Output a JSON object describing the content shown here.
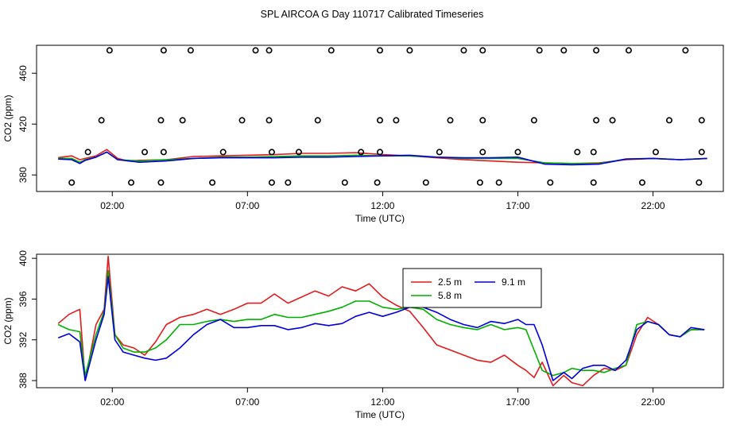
{
  "title": "SPL AIRCOA G  Day 110717  Calibrated Timeseries",
  "colors": {
    "s25": "#e31a1c",
    "s58": "#00b000",
    "s91": "#0000dd",
    "axis": "#000000"
  },
  "chart_data": [
    {
      "type": "line",
      "name": "top-panel",
      "xlabel": "Time (UTC)",
      "ylabel": "CO2 (ppm)",
      "xlim": [
        -0.8,
        24.6
      ],
      "ylim": [
        367,
        482
      ],
      "xticks": [
        2,
        7,
        12,
        17,
        22
      ],
      "xtick_labels": [
        "02:00",
        "07:00",
        "12:00",
        "17:00",
        "22:00"
      ],
      "yticks": [
        380,
        420,
        460
      ],
      "ytick_labels": [
        "380",
        "420",
        "460"
      ],
      "cal_points": {
        "time_h": [
          0.5,
          1.1,
          1.6,
          1.9,
          2.7,
          3.2,
          3.8,
          3.8,
          3.9,
          3.9,
          4.9,
          4.6,
          5.7,
          6.1,
          6.8,
          7.3,
          7.8,
          7.8,
          7.9,
          7.9,
          8.5,
          8.9,
          9.6,
          10.1,
          10.6,
          11.2,
          11.8,
          11.9,
          11.9,
          11.9,
          12.5,
          13.0,
          13.6,
          14.1,
          14.5,
          15.0,
          15.6,
          15.7,
          15.7,
          15.7,
          16.3,
          17.0,
          17.6,
          17.8,
          18.2,
          18.7,
          19.2,
          19.8,
          19.8,
          19.9,
          19.9,
          20.5,
          21.1,
          21.6,
          22.1,
          22.6,
          23.2,
          23.7,
          23.8,
          23.8
        ],
        "co2": [
          374,
          398,
          423,
          478,
          374,
          398,
          374,
          423,
          398,
          478,
          478,
          423,
          374,
          398,
          423,
          478,
          423,
          478,
          374,
          398,
          374,
          398,
          423,
          478,
          374,
          398,
          374,
          423,
          478,
          398,
          423,
          478,
          374,
          398,
          423,
          478,
          374,
          398,
          423,
          478,
          374,
          398,
          423,
          478,
          374,
          478,
          398,
          374,
          398,
          423,
          478,
          423,
          478,
          374,
          398,
          423,
          478,
          374,
          398,
          423
        ]
      },
      "series": [
        {
          "name": "2.5 m",
          "key": "s25",
          "x": [
            0,
            0.5,
            0.8,
            1.0,
            1.4,
            1.8,
            2.2,
            2.6,
            3.0,
            4.0,
            5.0,
            6.0,
            7.0,
            8.0,
            9.0,
            10.0,
            11.0,
            12.0,
            13.0,
            14.0,
            15.0,
            16.0,
            17.0,
            18.0,
            19.0,
            20.0,
            21.0,
            22.0,
            23.0,
            24.0
          ],
          "y": [
            393.6,
            395,
            392,
            393,
            395,
            400,
            393,
            391,
            391.5,
            392,
            394.5,
            395,
            395.5,
            396,
            397,
            397,
            397.5,
            396,
            395,
            393.5,
            392,
            391,
            390,
            389.5,
            389,
            389.5,
            392,
            393,
            392,
            393
          ]
        },
        {
          "name": "5.8 m",
          "key": "s58",
          "x": [
            0,
            0.5,
            0.8,
            1.0,
            1.4,
            1.8,
            2.2,
            2.6,
            3.0,
            4.0,
            5.0,
            6.0,
            7.0,
            8.0,
            9.0,
            10.0,
            11.0,
            12.0,
            13.0,
            14.0,
            15.0,
            16.0,
            17.0,
            18.0,
            19.0,
            20.0,
            21.0,
            22.0,
            23.0,
            24.0
          ],
          "y": [
            393,
            393,
            390,
            392,
            394,
            398,
            392,
            391.5,
            391,
            392,
            393,
            394,
            394,
            394.5,
            395,
            395,
            395.5,
            395,
            395,
            394,
            393,
            393,
            393,
            389.5,
            389,
            389,
            392.5,
            393,
            392,
            393
          ]
        },
        {
          "name": "9.1 m",
          "key": "s91",
          "x": [
            0,
            0.5,
            0.8,
            1.0,
            1.4,
            1.8,
            2.2,
            2.6,
            3.0,
            4.0,
            5.0,
            6.0,
            7.0,
            8.0,
            9.0,
            10.0,
            11.0,
            12.0,
            13.0,
            14.0,
            15.0,
            16.0,
            17.0,
            18.0,
            19.0,
            20.0,
            21.0,
            22.0,
            23.0,
            24.0
          ],
          "y": [
            392.5,
            392,
            389,
            391.5,
            394,
            398,
            392,
            391,
            390,
            391,
            393,
            393.5,
            393.5,
            393.5,
            394,
            394,
            394.5,
            395,
            395.5,
            394,
            393.5,
            393.5,
            394,
            388.5,
            388,
            388.5,
            392.5,
            393,
            392,
            393
          ]
        }
      ]
    },
    {
      "type": "line",
      "name": "bottom-panel",
      "xlabel": "Time (UTC)",
      "ylabel": "CO2 (ppm)",
      "xlim": [
        -0.8,
        24.6
      ],
      "ylim": [
        387.3,
        400.4
      ],
      "xticks": [
        2,
        7,
        12,
        17,
        22
      ],
      "xtick_labels": [
        "02:00",
        "07:00",
        "12:00",
        "17:00",
        "22:00"
      ],
      "yticks": [
        388,
        392,
        396,
        400
      ],
      "ytick_labels": [
        "388",
        "392",
        "396",
        "400"
      ],
      "legend": {
        "position": "top-center",
        "entries": [
          "2.5 m",
          "5.8 m",
          "9.1 m"
        ]
      },
      "series": [
        {
          "name": "2.5 m",
          "key": "s25",
          "x": [
            0,
            0.4,
            0.8,
            1.0,
            1.4,
            1.7,
            1.85,
            2.1,
            2.4,
            2.8,
            3.2,
            3.6,
            4.0,
            4.5,
            5.0,
            5.5,
            6.0,
            6.5,
            7.0,
            7.5,
            8.0,
            8.5,
            9.0,
            9.5,
            10.0,
            10.5,
            11.0,
            11.5,
            12.0,
            12.5,
            13.0,
            13.5,
            14.0,
            14.5,
            15.0,
            15.5,
            16.0,
            16.5,
            17.0,
            17.3,
            17.6,
            17.9,
            18.3,
            18.7,
            19.0,
            19.4,
            19.8,
            20.2,
            20.6,
            21.0,
            21.4,
            21.8,
            22.2,
            22.6,
            23.0,
            23.4,
            23.9
          ],
          "y": [
            393.6,
            394.5,
            395,
            388,
            393.5,
            395,
            400.2,
            392.5,
            391.5,
            391.2,
            390.5,
            391.8,
            393.5,
            394.2,
            394.5,
            395,
            394.5,
            395,
            395.6,
            395.6,
            396.5,
            395.6,
            396.2,
            396.8,
            396.3,
            397.2,
            396.8,
            397.5,
            396.2,
            395.4,
            394.8,
            393.2,
            391.5,
            391,
            390.5,
            390,
            389.8,
            390.5,
            389.5,
            389,
            388.3,
            389.8,
            387.5,
            388.5,
            387.8,
            387.5,
            388.5,
            389.2,
            389,
            389.5,
            392.5,
            394.2,
            393.5,
            392.5,
            392.3,
            393,
            393
          ]
        },
        {
          "name": "5.8 m",
          "key": "s58",
          "x": [
            0,
            0.4,
            0.8,
            1.0,
            1.4,
            1.7,
            1.85,
            2.1,
            2.4,
            2.8,
            3.2,
            3.6,
            4.0,
            4.5,
            5.0,
            5.5,
            6.0,
            6.5,
            7.0,
            7.5,
            8.0,
            8.5,
            9.0,
            9.5,
            10.0,
            10.5,
            11.0,
            11.5,
            12.0,
            12.5,
            13.0,
            13.5,
            14.0,
            14.5,
            15.0,
            15.5,
            16.0,
            16.5,
            17.0,
            17.3,
            17.6,
            17.9,
            18.3,
            18.7,
            19.0,
            19.4,
            19.8,
            20.2,
            20.6,
            21.0,
            21.4,
            21.8,
            22.2,
            22.6,
            23.0,
            23.4,
            23.9
          ],
          "y": [
            393.5,
            393,
            392.8,
            388.5,
            392.5,
            394.8,
            398.8,
            392.5,
            391.2,
            390.8,
            390.8,
            391.2,
            392,
            393.5,
            393.5,
            393.8,
            394,
            393.8,
            394,
            394,
            394.5,
            394.2,
            394.2,
            394.5,
            394.8,
            395.2,
            395.8,
            395.8,
            395.2,
            395,
            395.2,
            395,
            394,
            393.5,
            393.2,
            393,
            393.5,
            393,
            393.2,
            393,
            391,
            389,
            388.5,
            388.8,
            389.2,
            389,
            389,
            388.8,
            389.2,
            389.5,
            393.5,
            393.8,
            393.5,
            392.5,
            392.3,
            393,
            393
          ]
        },
        {
          "name": "9.1 m",
          "key": "s91",
          "x": [
            0,
            0.4,
            0.8,
            1.0,
            1.4,
            1.7,
            1.85,
            2.1,
            2.4,
            2.8,
            3.2,
            3.6,
            4.0,
            4.5,
            5.0,
            5.5,
            6.0,
            6.5,
            7.0,
            7.5,
            8.0,
            8.5,
            9.0,
            9.5,
            10.0,
            10.5,
            11.0,
            11.5,
            12.0,
            12.5,
            13.0,
            13.5,
            14.0,
            14.5,
            15.0,
            15.5,
            16.0,
            16.5,
            17.0,
            17.3,
            17.6,
            17.9,
            18.3,
            18.7,
            19.0,
            19.4,
            19.8,
            20.2,
            20.6,
            21.0,
            21.4,
            21.8,
            22.2,
            22.6,
            23.0,
            23.4,
            23.9
          ],
          "y": [
            392.2,
            392.6,
            391.8,
            388,
            392,
            394.5,
            398.2,
            392,
            390.8,
            390.5,
            390.2,
            390,
            390.2,
            391.2,
            392.5,
            393.5,
            394,
            393.2,
            393.2,
            393.4,
            393.4,
            393,
            393.2,
            393.6,
            393.4,
            393.6,
            394.3,
            394.7,
            394.3,
            394.7,
            395.2,
            395.2,
            394.7,
            394,
            393.5,
            393.2,
            393.8,
            393.6,
            394,
            393.5,
            393.5,
            391.5,
            388,
            388.8,
            388.2,
            389.2,
            389.5,
            389.5,
            389,
            390,
            393,
            393.8,
            393.5,
            392.5,
            392.3,
            393.2,
            393
          ]
        }
      ]
    }
  ]
}
